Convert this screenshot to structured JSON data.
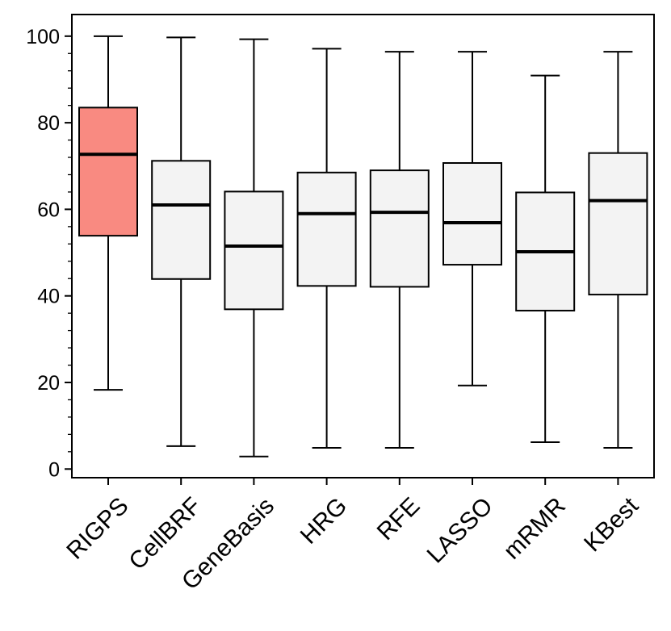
{
  "chart_data": {
    "type": "boxplot",
    "title": "",
    "xlabel": "",
    "ylabel": "",
    "ylim": [
      -2,
      105
    ],
    "yticks": [
      0,
      20,
      40,
      60,
      80,
      100
    ],
    "ytick_labels": [
      "0",
      "20",
      "40",
      "60",
      "80",
      "100"
    ],
    "grid": false,
    "categories": [
      "RIGPS",
      "CellBRF",
      "GeneBasis",
      "HRG",
      "RFE",
      "LASSO",
      "mRMR",
      "KBest"
    ],
    "boxes": [
      {
        "label": "RIGPS",
        "whisker_low": 18.3,
        "q1": 53.9,
        "median": 72.7,
        "q3": 83.5,
        "whisker_high": 100,
        "color": "#f98a81"
      },
      {
        "label": "CellBRF",
        "whisker_low": 5.3,
        "q1": 43.9,
        "median": 61.0,
        "q3": 71.2,
        "whisker_high": 99.7,
        "color": "#f3f3f3"
      },
      {
        "label": "GeneBasis",
        "whisker_low": 2.9,
        "q1": 36.9,
        "median": 51.5,
        "q3": 64.1,
        "whisker_high": 99.3,
        "color": "#f3f3f3"
      },
      {
        "label": "HRG",
        "whisker_low": 4.9,
        "q1": 42.3,
        "median": 59.0,
        "q3": 68.5,
        "whisker_high": 97.1,
        "color": "#f3f3f3"
      },
      {
        "label": "RFE",
        "whisker_low": 4.9,
        "q1": 42.1,
        "median": 59.3,
        "q3": 69.0,
        "whisker_high": 96.4,
        "color": "#f3f3f3"
      },
      {
        "label": "LASSO",
        "whisker_low": 19.3,
        "q1": 47.2,
        "median": 56.9,
        "q3": 70.7,
        "whisker_high": 96.4,
        "color": "#f3f3f3"
      },
      {
        "label": "mRMR",
        "whisker_low": 6.2,
        "q1": 36.6,
        "median": 50.2,
        "q3": 63.9,
        "whisker_high": 90.9,
        "color": "#f3f3f3"
      },
      {
        "label": "KBest",
        "whisker_low": 4.9,
        "q1": 40.3,
        "median": 62.0,
        "q3": 73.0,
        "whisker_high": 96.4,
        "color": "#f3f3f3"
      }
    ]
  }
}
